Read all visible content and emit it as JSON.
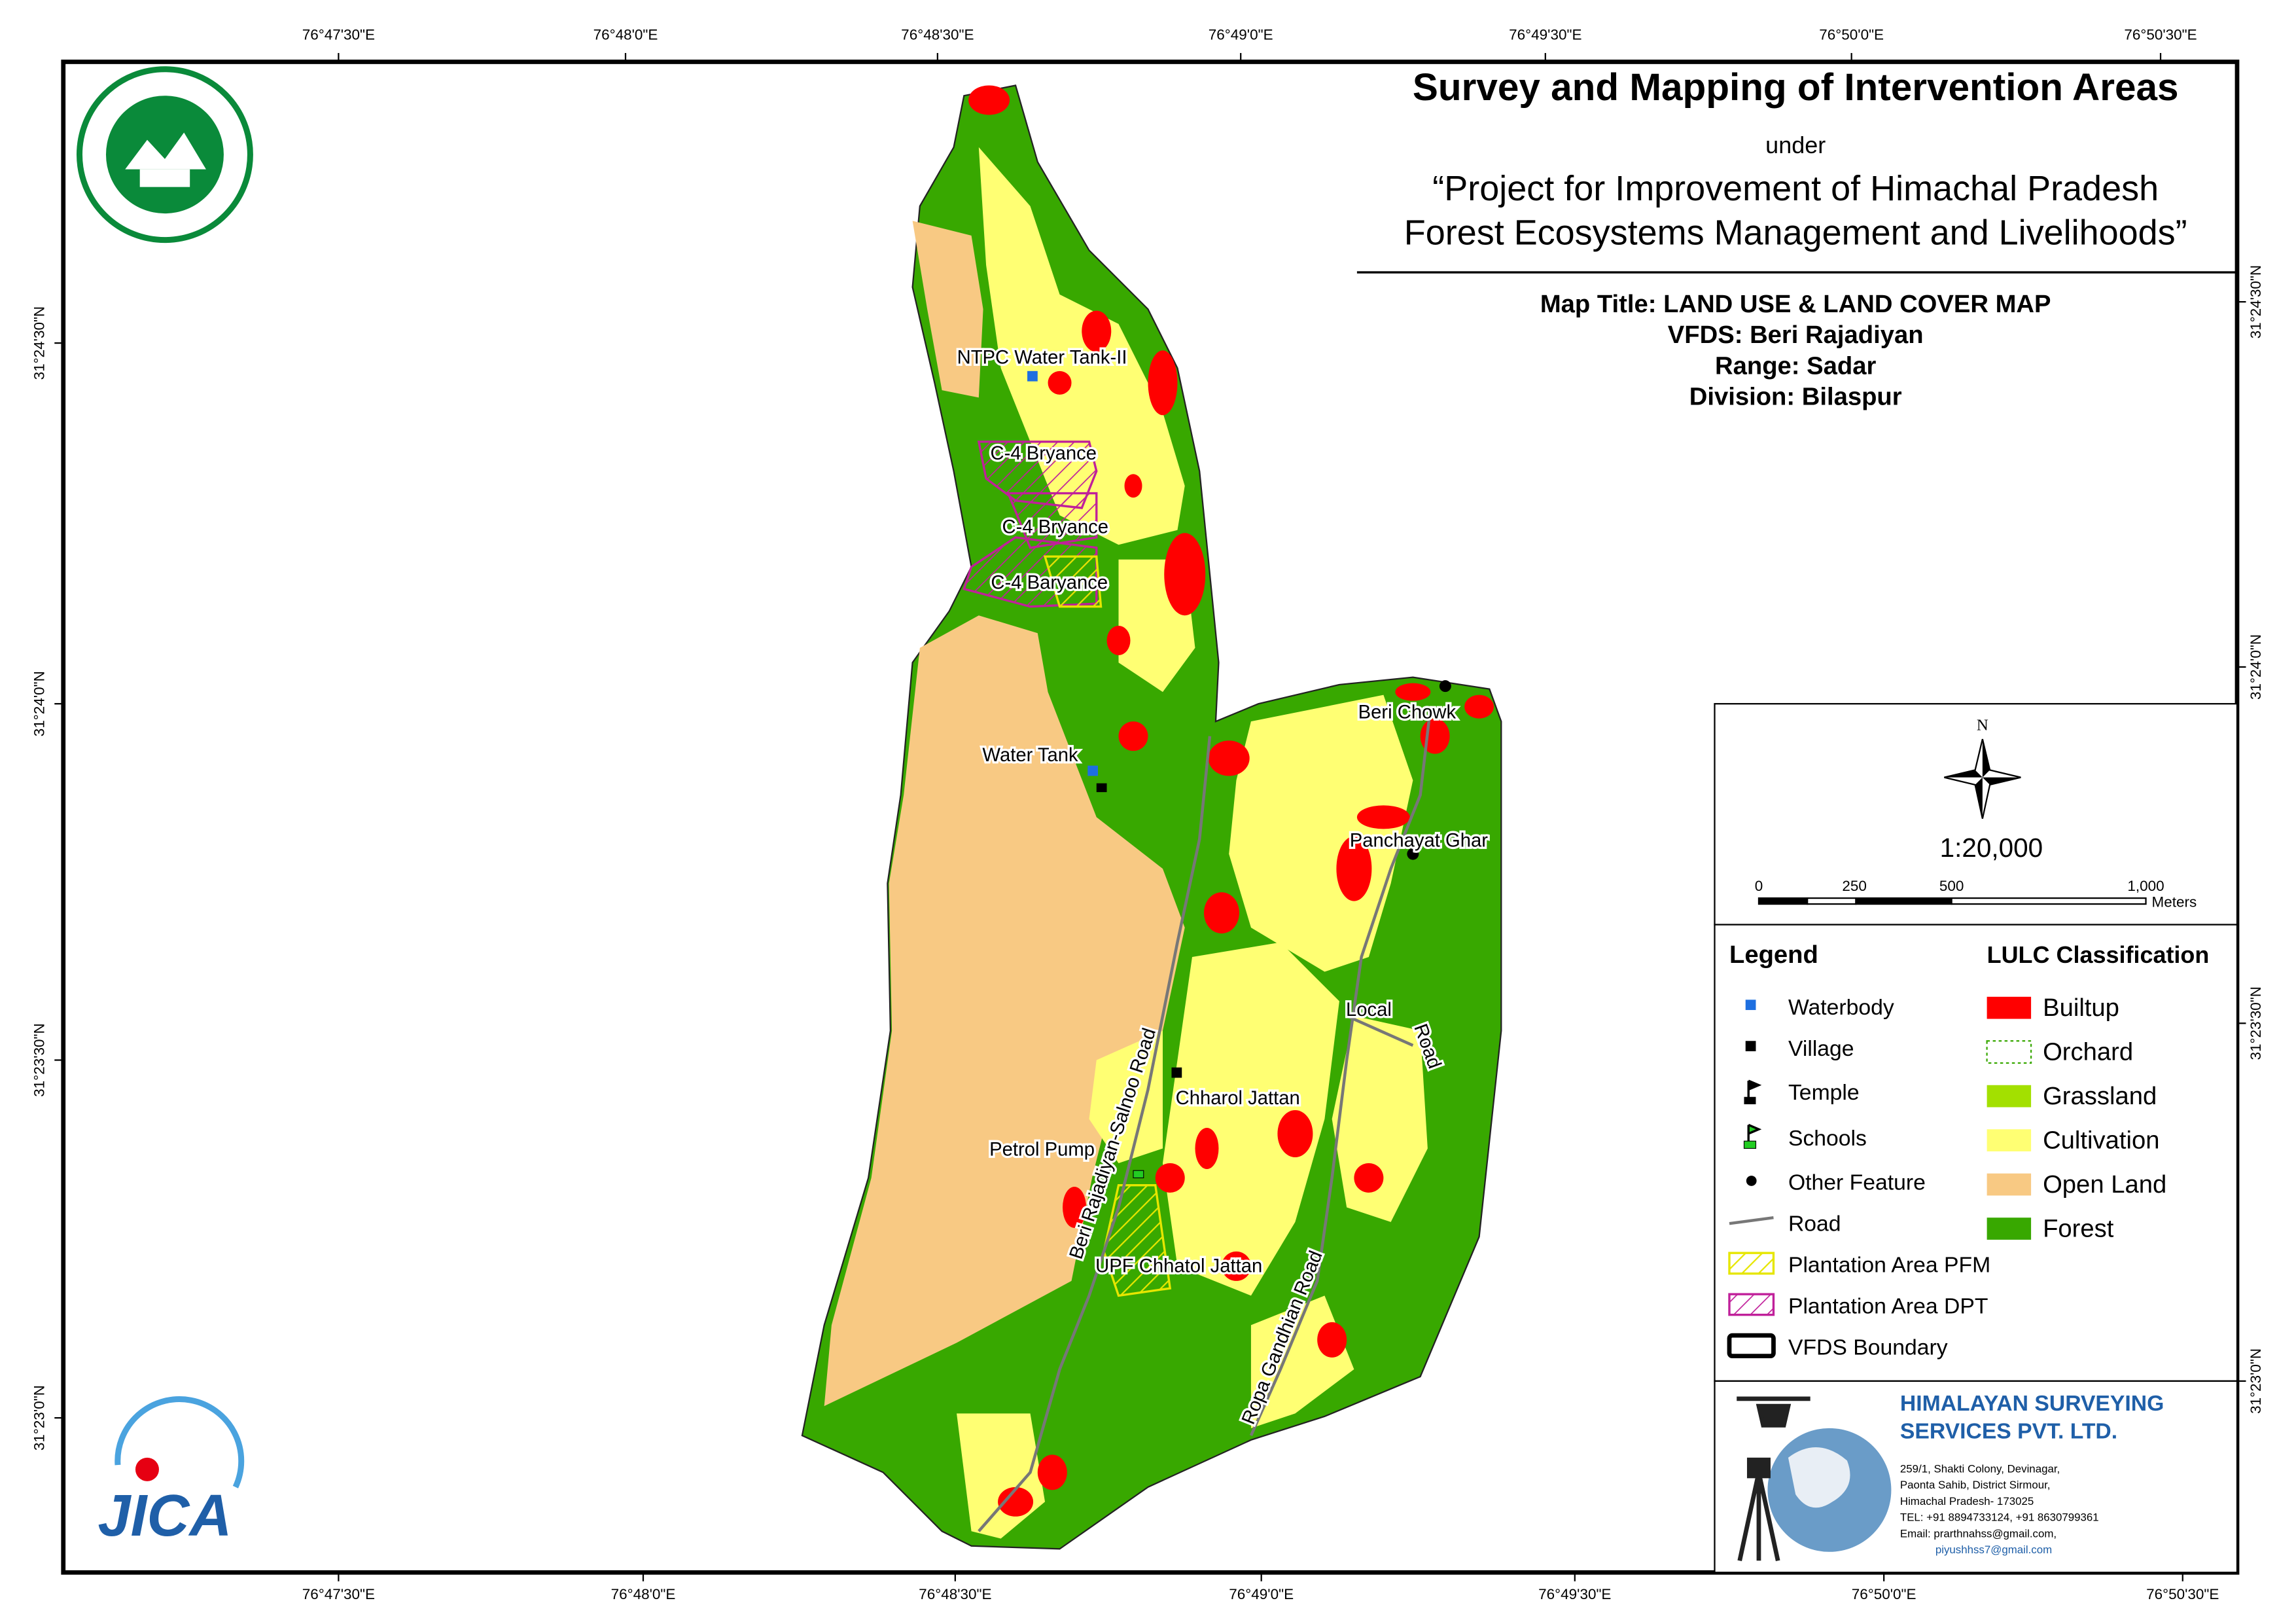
{
  "header": {
    "title": "Survey and Mapping of Intervention Areas",
    "under": "under",
    "project": [
      "“Project for Improvement of Himachal Pradesh",
      "Forest Ecosystems Management and Livelihoods”"
    ]
  },
  "map_info": [
    "Map Title: LAND USE & LAND COVER MAP",
    "VFDS: Beri Rajadiyan",
    "Range: Sadar",
    "Division: Bilaspur"
  ],
  "graticule": {
    "top": [
      "76°47'30\"E",
      "76°48'0\"E",
      "76°48'30\"E",
      "76°49'0\"E",
      "76°49'30\"E",
      "76°50'0\"E",
      "76°50'30\"E"
    ],
    "bottom": [
      "76°47'30\"E",
      "76°48'0\"E",
      "76°48'30\"E",
      "76°49'0\"E",
      "76°49'30\"E",
      "76°50'0\"E",
      "76°50'30\"E"
    ],
    "left": [
      "31°24'30\"N",
      "31°24'0\"N",
      "31°23'30\"N",
      "31°23'0\"N"
    ],
    "right": [
      "31°24'30\"N",
      "31°24'0\"N",
      "31°23'30\"N",
      "31°23'0\"N"
    ]
  },
  "map_labels": [
    "NTPC Water Tank-II",
    "C-4 Bryance",
    "C-4 Bryance",
    "C-4 Baryance",
    "Water Tank",
    "Beri Chowk",
    "Panchayat Ghar",
    "Chharol Jattan",
    "Petrol Pump",
    "UPF Chhatol Jattan",
    "Beri Rajadiyan-Salnoo Road",
    "Ropa Gandhian Road",
    "Local",
    "Road"
  ],
  "scale_box": {
    "north": "N",
    "ratio": "1:20,000",
    "ticks": [
      "0",
      "250",
      "500",
      "1,000"
    ],
    "unit": "Meters"
  },
  "legend": {
    "title": "Legend",
    "items": [
      "Waterbody",
      "Village",
      "Temple",
      "Schools",
      "Other Feature",
      "Road",
      "Plantation Area PFM",
      "Plantation Area DPT",
      "VFDS Boundary"
    ],
    "lulc_title": "LULC Classification",
    "classes": [
      "Builtup",
      "Orchard",
      "Grassland",
      "Cultivation",
      "Open Land",
      "Forest"
    ]
  },
  "logos": {
    "jica": "JICA"
  },
  "company": {
    "name": [
      "HIMALAYAN SURVEYING",
      "SERVICES PVT. LTD."
    ],
    "address": [
      "259/1, Shakti Colony, Devinagar,",
      "Paonta Sahib, District Sirmour,",
      "Himachal Pradesh- 173025",
      "TEL: +91 8894733124, +91 8630799361",
      "Email: prarthnahss@gmail.com,",
      "piyushhss7@gmail.com"
    ]
  }
}
